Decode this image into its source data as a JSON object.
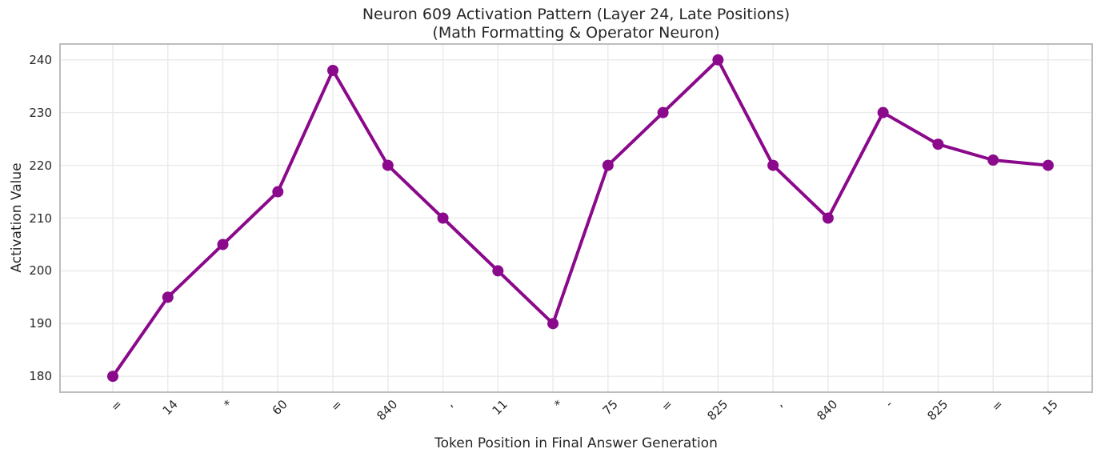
{
  "chart_data": {
    "type": "line",
    "title": "Neuron 609 Activation Pattern (Layer 24, Late Positions)",
    "subtitle": "(Math Formatting & Operator Neuron)",
    "xlabel": "Token Position in Final Answer Generation",
    "ylabel": "Activation Value",
    "categories": [
      "=",
      "14",
      "*",
      "60",
      "=",
      "840",
      ",",
      "11",
      "*",
      "75",
      "=",
      "825",
      ",",
      "840",
      "-",
      "825",
      "=",
      "15"
    ],
    "values": [
      180,
      195,
      205,
      215,
      238,
      220,
      210,
      200,
      190,
      220,
      230,
      240,
      220,
      210,
      230,
      224,
      221,
      220
    ],
    "yticks": [
      180,
      190,
      200,
      210,
      220,
      230,
      240
    ],
    "ylim": [
      177,
      243
    ],
    "grid": true,
    "legend": null,
    "colors": {
      "line": "#8B098B",
      "marker": "#8B098B",
      "grid": "#ebebeb",
      "spine": "#bdbdbd",
      "text": "#262626"
    }
  }
}
